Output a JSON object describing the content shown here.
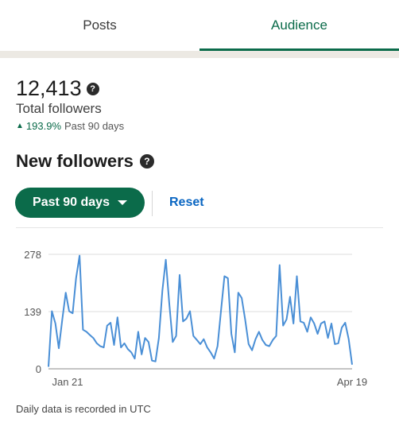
{
  "tabs": [
    {
      "label": "Posts",
      "active": false
    },
    {
      "label": "Audience",
      "active": true
    }
  ],
  "summary": {
    "total_count": "12,413",
    "total_label": "Total followers",
    "growth_pct": "193.9%",
    "growth_period": "Past 90 days"
  },
  "new_followers": {
    "title": "New followers",
    "filter_label": "Past 90 days",
    "reset_label": "Reset"
  },
  "footer_note": "Daily data is recorded in UTC",
  "colors": {
    "accent_green": "#0b6b4a",
    "link_blue": "#0a66c2",
    "line_blue": "#4a8fd6"
  },
  "chart_data": {
    "type": "line",
    "x_tick_labels": [
      "Jan 21",
      "Apr 19"
    ],
    "y_ticks": [
      0,
      139,
      278
    ],
    "ylim": [
      0,
      278
    ],
    "grid": true,
    "series": [
      {
        "values": [
          5,
          140,
          110,
          50,
          120,
          185,
          140,
          135,
          220,
          275,
          95,
          90,
          82,
          75,
          62,
          55,
          52,
          105,
          112,
          58,
          125,
          52,
          62,
          48,
          40,
          25,
          90,
          35,
          75,
          65,
          20,
          18,
          75,
          190,
          265,
          160,
          65,
          80,
          228,
          115,
          122,
          140,
          80,
          70,
          60,
          72,
          52,
          40,
          25,
          55,
          140,
          225,
          220,
          85,
          40,
          185,
          172,
          120,
          60,
          45,
          72,
          90,
          70,
          58,
          55,
          70,
          80,
          252,
          105,
          120,
          175,
          110,
          225,
          115,
          112,
          90,
          125,
          110,
          85,
          110,
          115,
          75,
          110,
          60,
          62,
          100,
          112,
          72,
          10
        ]
      }
    ]
  }
}
